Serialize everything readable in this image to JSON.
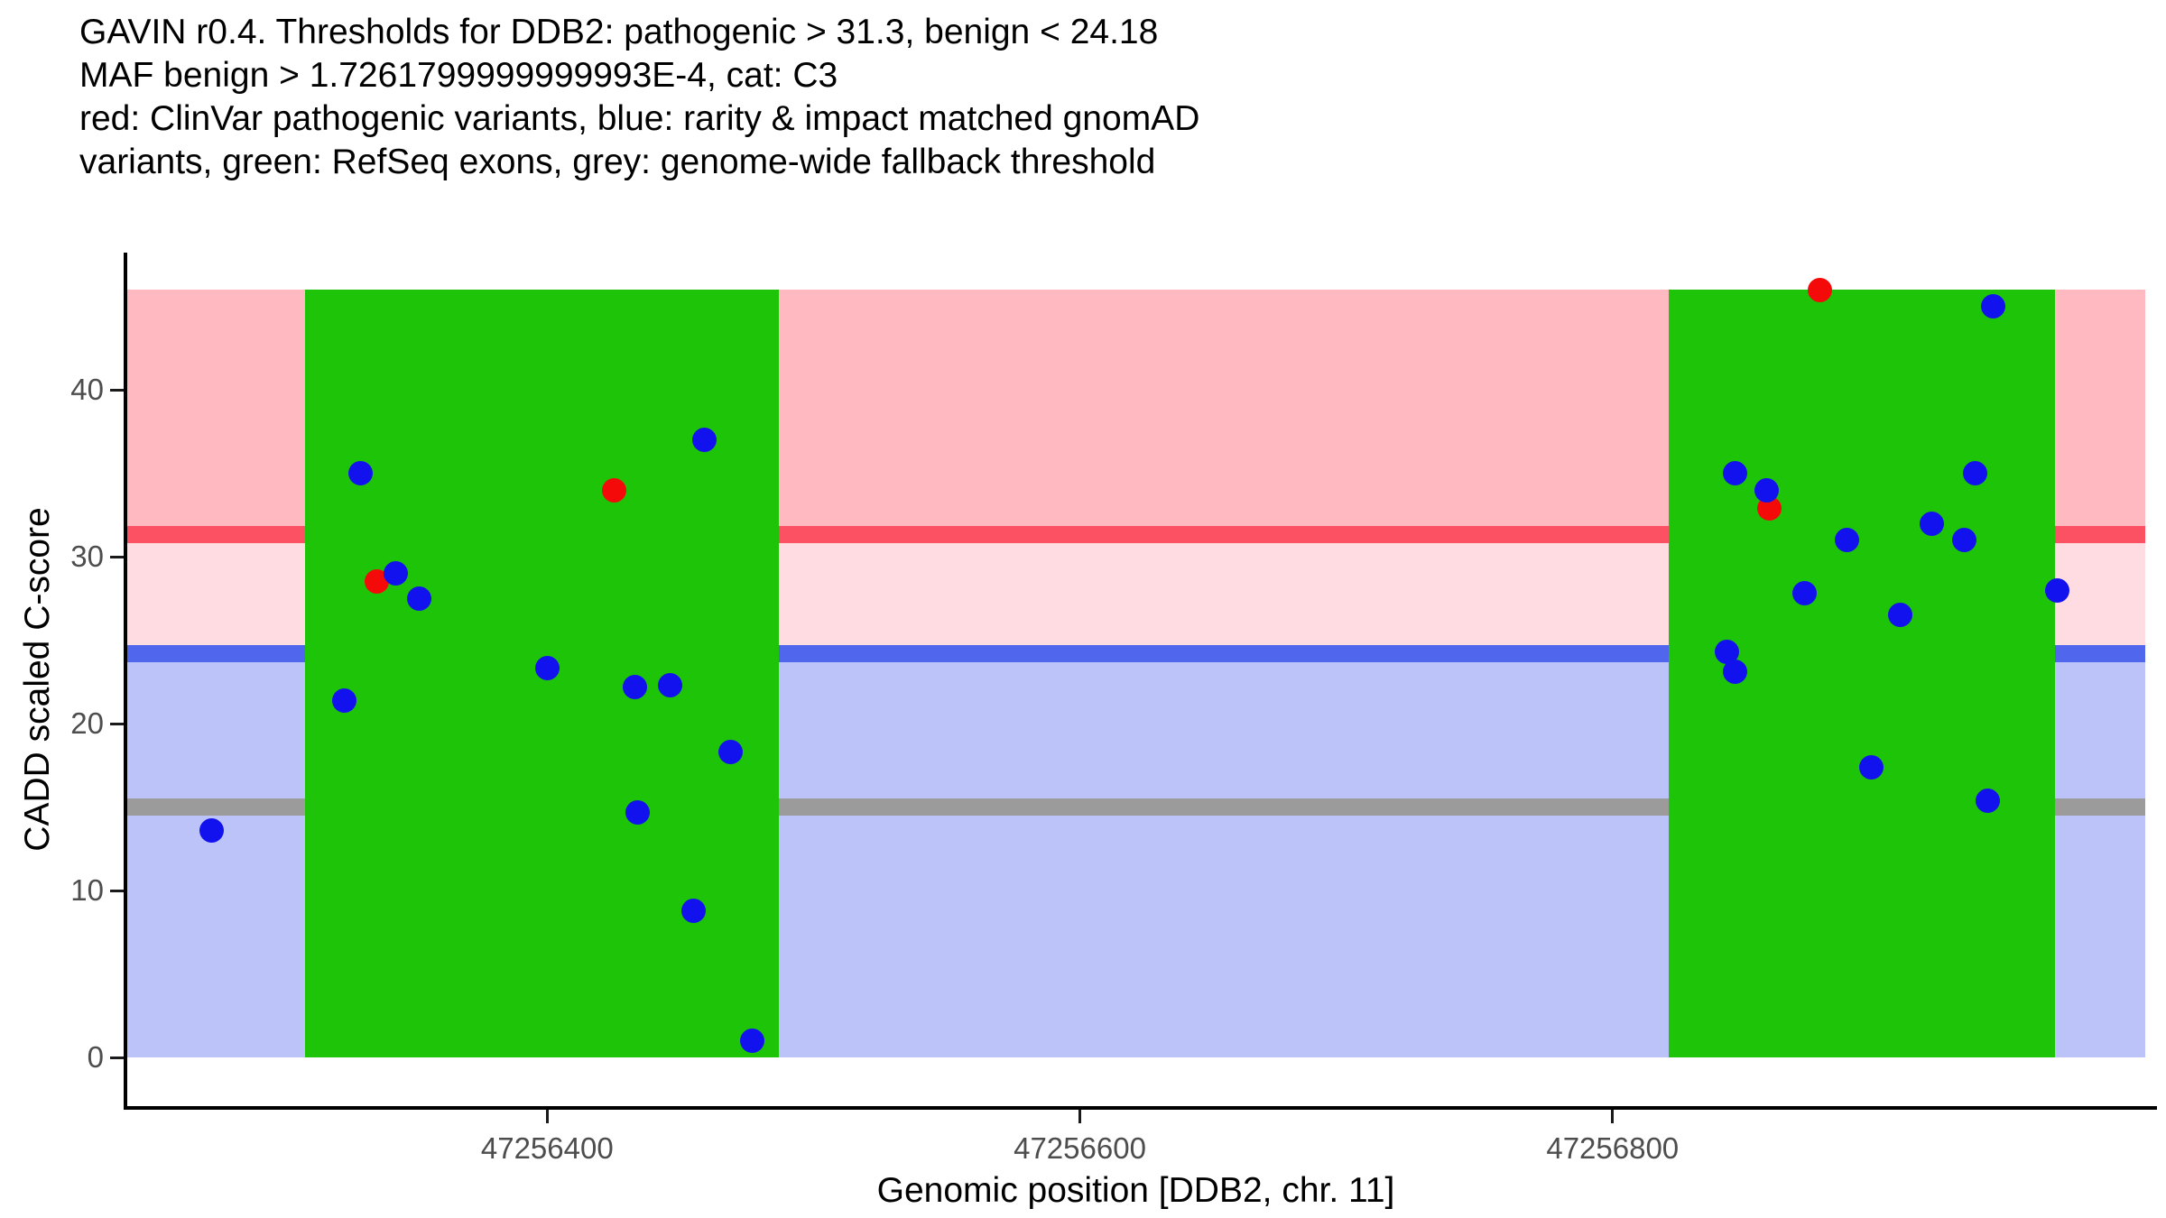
{
  "title": {
    "lines": [
      "GAVIN r0.4. Thresholds for DDB2: pathogenic > 31.3, benign < 24.18",
      "MAF benign > 1.7261799999999993E-4, cat: C3",
      "red: ClinVar pathogenic variants, blue: rarity & impact matched gnomAD",
      "variants, green: RefSeq exons, grey: genome-wide fallback threshold"
    ]
  },
  "y_axis": {
    "label": "CADD scaled C-score",
    "ticks": [
      0,
      10,
      20,
      30,
      40
    ]
  },
  "x_axis": {
    "label": "Genomic position [DDB2, chr. 11]",
    "ticks": [
      47256400,
      47256600,
      47256800
    ]
  },
  "chart_data": {
    "type": "scatter",
    "title": "GAVIN r0.4 thresholds for DDB2",
    "xlabel": "Genomic position [DDB2, chr. 11]",
    "ylabel": "CADD scaled C-score",
    "x_domain": [
      47256242,
      47257000
    ],
    "y_domain": [
      0,
      46
    ],
    "grid": false,
    "legend": "described in title text",
    "thresholds": {
      "pathogenic_cadd": 31.3,
      "benign_cadd": 24.18,
      "genome_wide_fallback_cadd": 15,
      "maf_benign": "1.7261799999999993E-4",
      "category": "C3"
    },
    "exons": [
      [
        47256309,
        47256487
      ],
      [
        47256821,
        47256966
      ]
    ],
    "bands": [
      {
        "name": "pathogenic-zone",
        "from": 31.3,
        "to": 46,
        "color_key": "band_pink"
      },
      {
        "name": "intermediate-zone",
        "from": 24.18,
        "to": 31.3,
        "color_key": "band_light_pink"
      },
      {
        "name": "benign-zone",
        "from": 0,
        "to": 24.18,
        "color_key": "band_periwinkle"
      }
    ],
    "series": [
      {
        "name": "ClinVar pathogenic variants",
        "color_key": "point_red",
        "points": [
          [
            47256336,
            28.5
          ],
          [
            47256425,
            34.0
          ],
          [
            47256859,
            32.9
          ],
          [
            47256878,
            46.0
          ]
        ]
      },
      {
        "name": "rarity & impact matched gnomAD variants",
        "color_key": "point_blue",
        "points": [
          [
            47256274,
            13.6
          ],
          [
            47256324,
            21.4
          ],
          [
            47256330,
            35.0
          ],
          [
            47256343,
            29.0
          ],
          [
            47256352,
            27.5
          ],
          [
            47256400,
            23.3
          ],
          [
            47256433,
            22.2
          ],
          [
            47256434,
            14.7
          ],
          [
            47256446,
            22.3
          ],
          [
            47256455,
            8.8
          ],
          [
            47256459,
            37.0
          ],
          [
            47256469,
            18.3
          ],
          [
            47256477,
            1.0
          ],
          [
            47256843,
            24.3
          ],
          [
            47256846,
            23.1
          ],
          [
            47256846,
            35.0
          ],
          [
            47256858,
            34.0
          ],
          [
            47256872,
            27.8
          ],
          [
            47256888,
            31.0
          ],
          [
            47256897,
            17.4
          ],
          [
            47256908,
            26.5
          ],
          [
            47256920,
            32.0
          ],
          [
            47256932,
            31.0
          ],
          [
            47256936,
            35.0
          ],
          [
            47256941,
            15.4
          ],
          [
            47256943,
            45.0
          ],
          [
            47256967,
            28.0
          ]
        ]
      }
    ]
  },
  "colors": {
    "band_pink": "#FFB9C0",
    "band_light_pink": "#FFDCE1",
    "band_periwinkle": "#BCC3F8",
    "line_red": "#FB5163",
    "line_blue": "#4F66ED",
    "line_grey": "#9B9B9B",
    "exon_green": "#1EC408",
    "point_blue": "#1212EE",
    "point_red": "#F50A0A",
    "axis": "#000000",
    "tick_label": "#4D4D4D"
  }
}
